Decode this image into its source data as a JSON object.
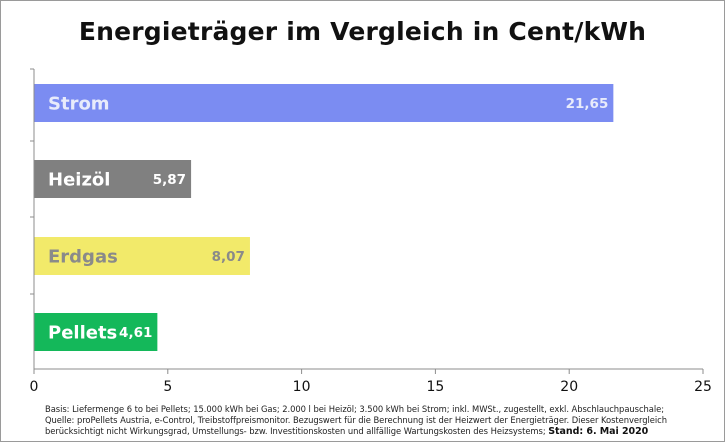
{
  "chart_data": {
    "type": "bar",
    "orientation": "horizontal",
    "title": "Energieträger im Vergleich in Cent/kWh",
    "categories": [
      "Strom",
      "Heizöl",
      "Erdgas",
      "Pellets"
    ],
    "values": [
      21.65,
      5.87,
      8.07,
      4.61
    ],
    "value_labels": [
      "21,65",
      "5,87",
      "8,07",
      "4,61"
    ],
    "colors": [
      "#7b8cf2",
      "#808080",
      "#f2ea6a",
      "#14b85a"
    ],
    "label_colors": [
      "#e8ebfb",
      "#ffffff",
      "#8a8a8a",
      "#ffffff"
    ],
    "xlim": [
      0,
      25
    ],
    "xticks": [
      0,
      5,
      10,
      15,
      20,
      25
    ],
    "xlabel": "",
    "ylabel": "",
    "grid": false,
    "legend": "none"
  },
  "footnote": {
    "line1": "Basis: Liefermenge 6 to bei Pellets; 15.000 kWh bei Gas; 2.000 l bei Heizöl; 3.500 kWh bei Strom; inkl. MWSt., zugestellt, exkl. Abschlauchpauschale;",
    "line2": "Quelle: proPellets Austria, e-Control, Treibstoffpreismonitor. Bezugswert für die Berechnung ist der Heizwert der Energieträger. Dieser Kostenvergleich",
    "line3": "berücksichtigt nicht Wirkungsgrad, Umstellungs- bzw. Investitionskosten und allfällige Wartungskosten des Heizsystems;",
    "stand": "Stand: 6. Mai 2020"
  }
}
